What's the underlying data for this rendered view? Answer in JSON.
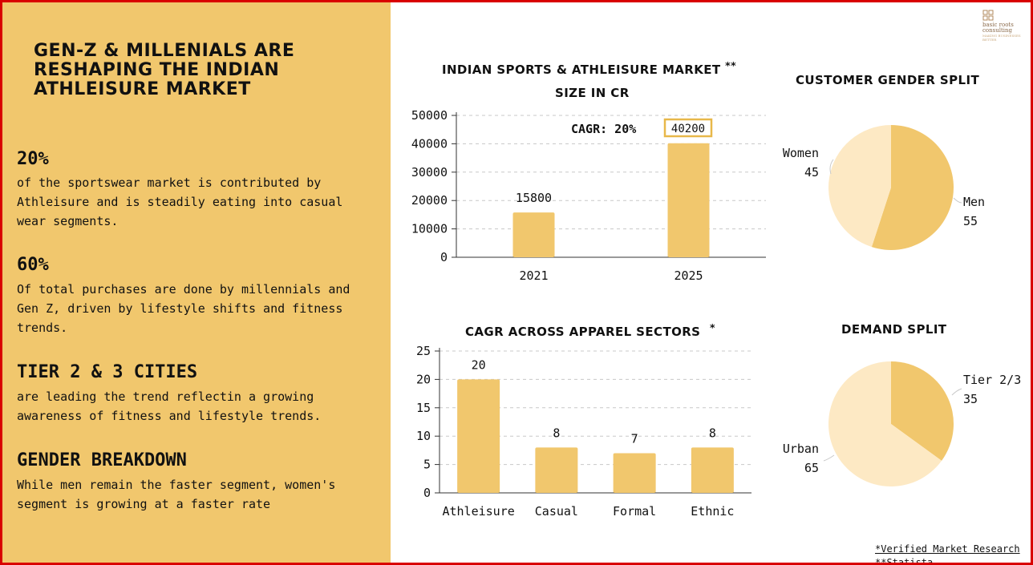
{
  "left": {
    "headline": "Gen-Z & Millenials are reshaping the Indian Athleisure market",
    "stats": [
      {
        "title": "20%",
        "body": "of the sportswear market is contributed by Athleisure and is steadily eating into casual wear segments."
      },
      {
        "title": "60%",
        "body": "Of total purchases are done by millennials and Gen Z, driven by lifestyle shifts and fitness trends."
      },
      {
        "title": "TIER 2 & 3 CITIES",
        "body": "are leading the trend reflectin a growing awareness of fitness and lifestyle trends."
      },
      {
        "title": "GENDER BREAKDOWN",
        "body": "While men remain the faster segment, women's segment is growing at a faster rate"
      }
    ]
  },
  "logo": {
    "line1": "basic roots",
    "line2": "consulting",
    "tagline": "MAKING BUSINESSES BETTER"
  },
  "sources": {
    "verified": "*Verified Market Research",
    "statista": "**Statista"
  },
  "colors": {
    "panel": "#f1c76d",
    "bar": "#f1c76d",
    "pie_light": "#fde9c4",
    "frame": "#d90000"
  },
  "chart_data": [
    {
      "type": "bar",
      "title_line1": "INDIAN SPORTS & ATHLEISURE MARKET",
      "title_mark": "**",
      "title_line2": "SIZE IN CR",
      "categories": [
        "2021",
        "2025"
      ],
      "values": [
        15800,
        40200
      ],
      "value_labels": [
        "15800",
        "40200"
      ],
      "ylim": [
        0,
        50000
      ],
      "yticks": [
        "0",
        "10000",
        "20000",
        "30000",
        "40000",
        "50000"
      ],
      "annotation": "CAGR: 20%",
      "grid": true
    },
    {
      "type": "bar",
      "title": "CAGR ACROSS APPAREL SECTORS",
      "title_mark": "*",
      "categories": [
        "Athleisure",
        "Casual",
        "Formal",
        "Ethnic"
      ],
      "values": [
        20,
        8,
        7,
        8
      ],
      "value_labels": [
        "20",
        "8",
        "7",
        "8"
      ],
      "ylim": [
        0,
        25
      ],
      "yticks": [
        "0",
        "5",
        "10",
        "15",
        "20",
        "25"
      ],
      "grid": true
    },
    {
      "type": "pie",
      "title": "CUSTOMER GENDER SPLIT",
      "slices": [
        {
          "label": "Men",
          "value": 55,
          "value_text": "55",
          "color": "#f1c76d"
        },
        {
          "label": "Women",
          "value": 45,
          "value_text": "45",
          "color": "#fde9c4"
        }
      ]
    },
    {
      "type": "pie",
      "title": "DEMAND SPLIT",
      "slices": [
        {
          "label": "Tier 2/3",
          "value": 35,
          "value_text": "35",
          "color": "#f1c76d"
        },
        {
          "label": "Urban",
          "value": 65,
          "value_text": "65",
          "color": "#fde9c4"
        }
      ]
    }
  ]
}
